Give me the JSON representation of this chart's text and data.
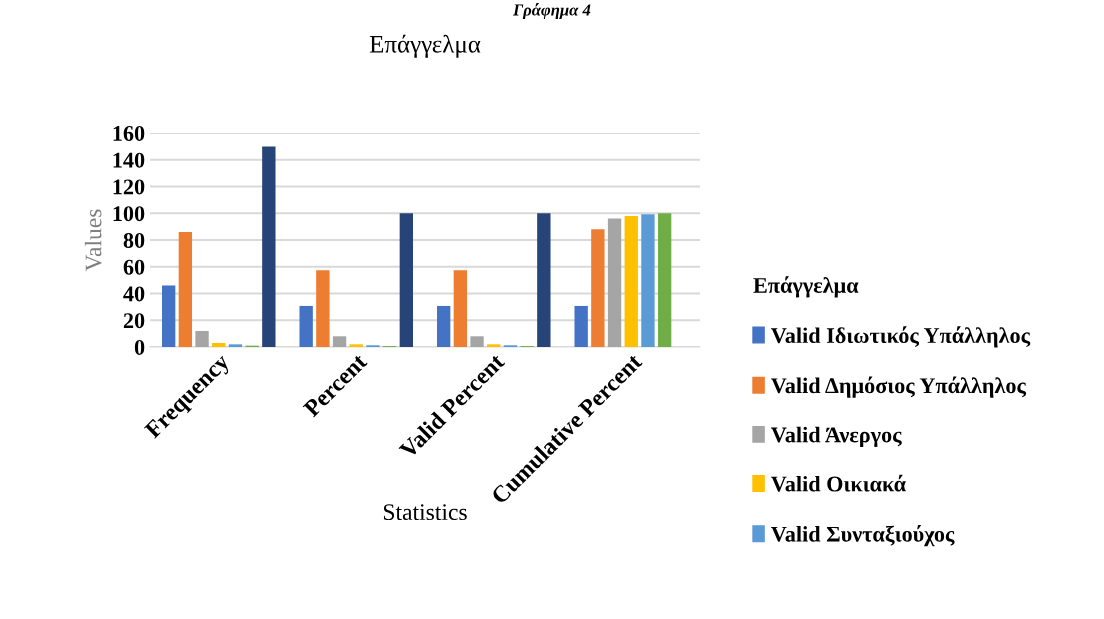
{
  "chart_data": {
    "type": "bar",
    "title": "Επάγγελμα",
    "xlabel": "Statistics",
    "ylabel": "Values",
    "legend_title": "Επάγγελμα",
    "annotations": [
      "Γράφημα 4"
    ],
    "categories": [
      "Frequency",
      "Percent",
      "Valid Percent",
      "Cumulative Percent"
    ],
    "series": [
      {
        "name": "Valid Ιδιωτικός Υπάλληλος",
        "color": "#4472c4",
        "values": [
          46,
          30.7,
          30.7,
          30.7
        ]
      },
      {
        "name": "Valid Δημόσιος Υπάλληλος",
        "color": "#ed7d31",
        "values": [
          86,
          57.3,
          57.3,
          88
        ]
      },
      {
        "name": "Valid Άνεργος",
        "color": "#a5a5a5",
        "values": [
          12,
          8,
          8,
          96
        ]
      },
      {
        "name": "Valid Οικιακά",
        "color": "#ffc000",
        "values": [
          3,
          2,
          2,
          98
        ]
      },
      {
        "name": "Valid Συνταξιούχος",
        "color": "#5b9bd5",
        "values": [
          2,
          1.3,
          1.3,
          99.3
        ]
      },
      {
        "color": "#70ad47",
        "values": [
          1,
          0.7,
          0.7,
          100
        ]
      },
      {
        "color": "#264478",
        "values": [
          150,
          100,
          100,
          null
        ]
      }
    ],
    "ylim": [
      0,
      160
    ],
    "yticks": [
      0,
      20,
      40,
      60,
      80,
      100,
      120,
      140,
      160
    ],
    "grid": "y",
    "legend": "right"
  }
}
